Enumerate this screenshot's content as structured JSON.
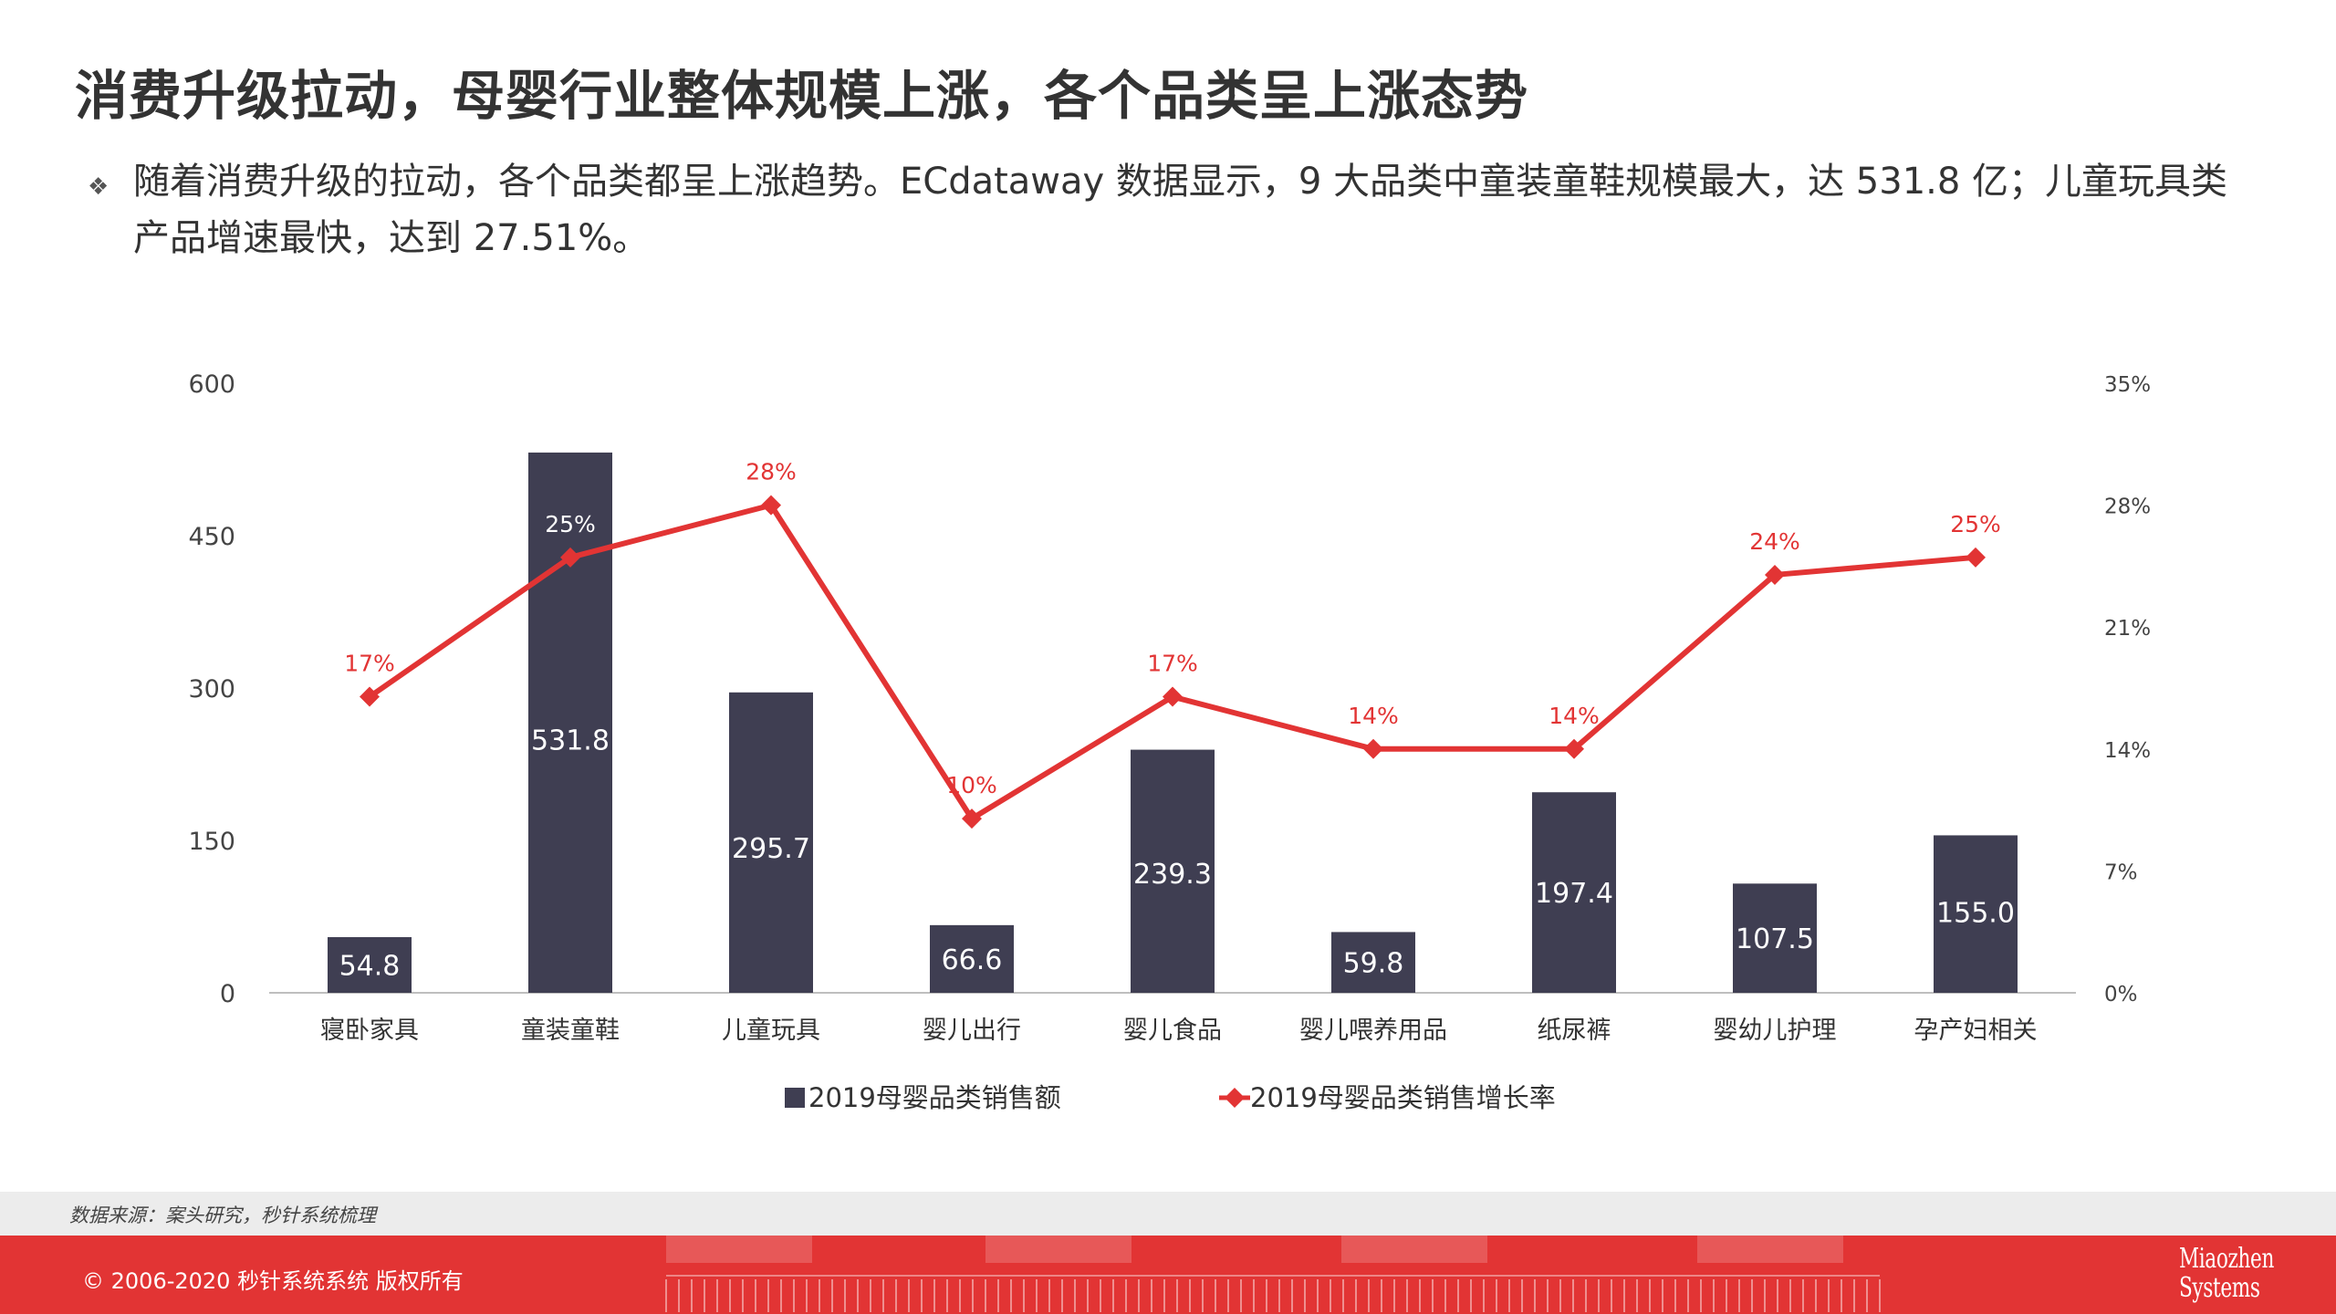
{
  "title": "消费升级拉动，母婴行业整体规模上涨，各个品类呈上涨态势",
  "bullet": {
    "icon": "diamond-bullet-icon",
    "text": "随着消费升级的拉动，各个品类都呈上涨趋势。ECdataway 数据显示，9 大品类中童装童鞋规模最大，达 531.8 亿；儿童玩具类产品增速最快，达到 27.51%。"
  },
  "chart_data": {
    "type": "bar+line",
    "categories": [
      "寝卧家具",
      "童装童鞋",
      "儿童玩具",
      "婴儿出行",
      "婴儿食品",
      "婴儿喂养用品",
      "纸尿裤",
      "婴幼儿护理",
      "孕产妇相关"
    ],
    "series": [
      {
        "name": "2019母婴品类销售额",
        "type": "bar",
        "axis": "left",
        "values": [
          54.8,
          531.8,
          295.7,
          66.6,
          239.3,
          59.8,
          197.4,
          107.5,
          155.0
        ],
        "labels": [
          "54.8",
          "531.8",
          "295.7",
          "66.6",
          "239.3",
          "59.8",
          "197.4",
          "107.5",
          "155.0"
        ],
        "color": "#3f3e52"
      },
      {
        "name": "2019母婴品类销售增长率",
        "type": "line",
        "axis": "right",
        "values": [
          17,
          25,
          28,
          10,
          17,
          14,
          14,
          24,
          25
        ],
        "labels": [
          "17%",
          "25%",
          "28%",
          "10%",
          "17%",
          "14%",
          "14%",
          "24%",
          "25%"
        ],
        "color": "#e23434"
      }
    ],
    "y_left": {
      "ticks": [
        "0",
        "150",
        "300",
        "450",
        "600"
      ],
      "ylim": [
        0,
        600
      ]
    },
    "y_right": {
      "ticks": [
        "0%",
        "7%",
        "14%",
        "21%",
        "28%",
        "35%"
      ],
      "ylim": [
        0,
        35
      ]
    },
    "legend_placement": "bottom-center",
    "grid": false
  },
  "source": "数据来源：案头研究，秒针系统梳理",
  "footer": {
    "copyright": "© 2006-2020 秒针系统系统 版权所有",
    "logo_line1": "Miaozhen",
    "logo_line2": "Systems",
    "logo_icon": "miaozhen-systems-logo"
  },
  "colors": {
    "bar": "#3f3e52",
    "line": "#e23434",
    "footer": "#e23434",
    "source_bar": "#ececec"
  }
}
